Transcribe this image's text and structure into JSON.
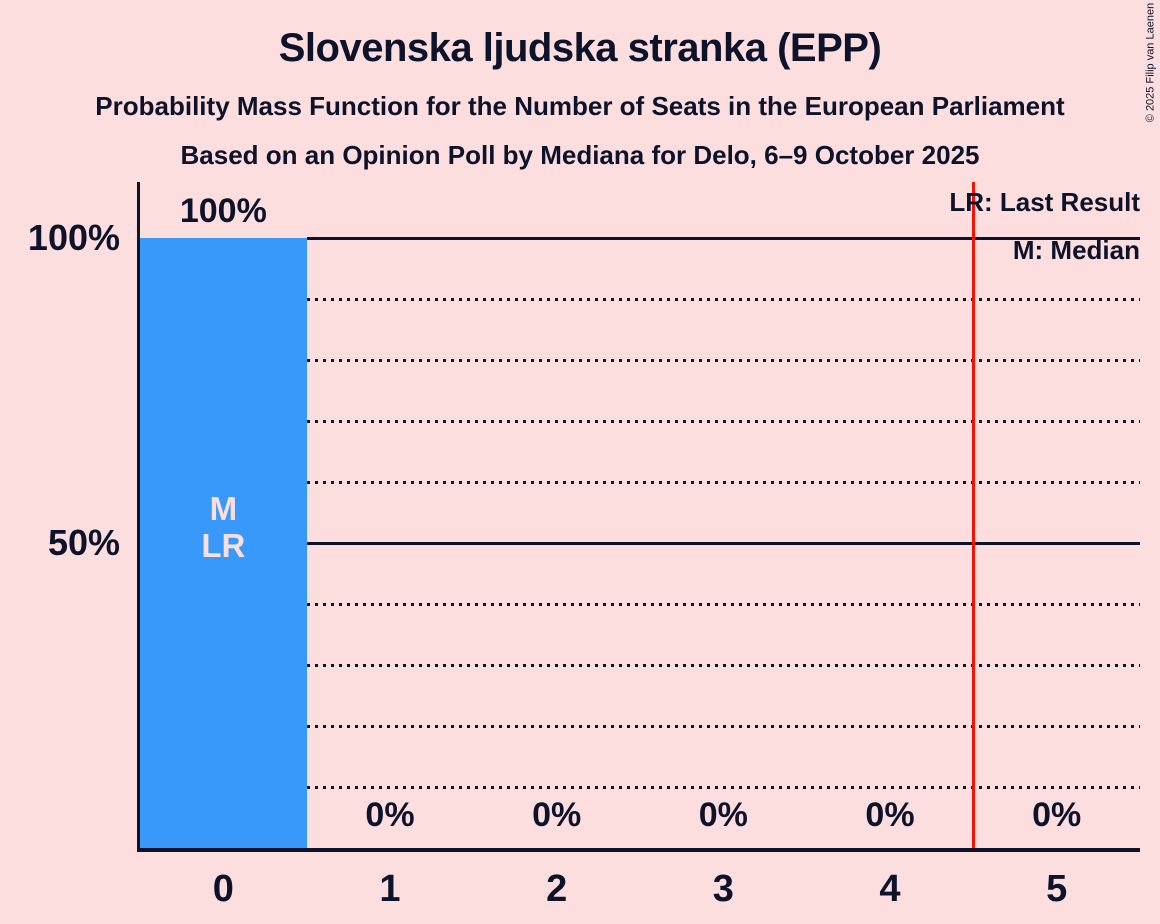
{
  "header": {
    "title": "Slovenska ljudska stranka (EPP)",
    "subtitle1": "Probability Mass Function for the Number of Seats in the European Parliament",
    "subtitle2": "Based on an Opinion Poll by Mediana for Delo, 6–9 October 2025",
    "copyright": "© 2025 Filip van Laenen"
  },
  "legend": {
    "lr_label": "LR: Last Result",
    "m_label": "M: Median"
  },
  "colors": {
    "background": "#fcdede",
    "ink": "#0d132b",
    "bar": "#3999fa",
    "bar-text": "#fcdede",
    "red-line": "#f01408"
  },
  "chart_data": {
    "type": "bar",
    "title": "Slovenska ljudska stranka (EPP)",
    "categories": [
      "0",
      "1",
      "2",
      "3",
      "4",
      "5"
    ],
    "values": [
      100,
      0,
      0,
      0,
      0,
      0
    ],
    "bar_labels": [
      "100%",
      "0%",
      "0%",
      "0%",
      "0%",
      "0%"
    ],
    "bar_inner_labels": [
      "M",
      "LR"
    ],
    "median_bar": "0",
    "last_result_line_x": 4.5,
    "xlabel": "",
    "ylabel": "",
    "ylim": [
      0,
      100
    ],
    "y_axis_labels": [
      {
        "pct": 100,
        "label": "100%"
      },
      {
        "pct": 50,
        "label": "50%"
      }
    ],
    "gridlines": {
      "solid_pct": [
        100,
        50
      ],
      "dotted_pct": [
        90,
        80,
        70,
        60,
        40,
        30,
        20,
        10
      ]
    },
    "legend_position": "top-right",
    "bar_color": "#3999fa",
    "last_result_line_color": "#f01408"
  }
}
